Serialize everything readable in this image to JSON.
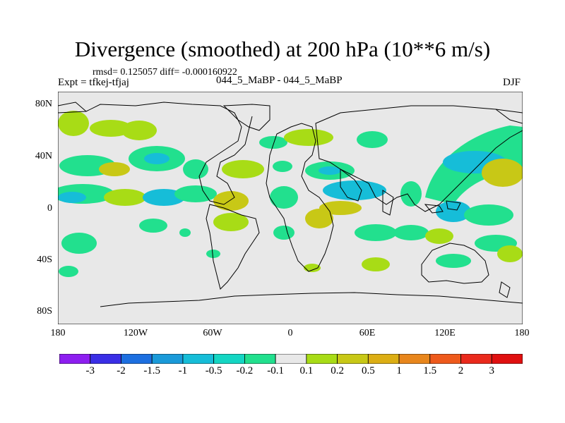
{
  "title": "Divergence (smoothed) at 200 hPa (10**6 m/s)",
  "stats": "rmsd= 0.125057 diff= -0.000160922",
  "expt": "Expt = tfkej-tfjaj",
  "center_label": "044_5_MaBP - 044_5_MaBP",
  "season": "DJF",
  "lat_labels": [
    "80N",
    "40N",
    "0",
    "40S",
    "80S"
  ],
  "lon_labels": [
    "180",
    "120W",
    "60W",
    "0",
    "60E",
    "120E",
    "180"
  ],
  "colorbar": {
    "labels": [
      "-3",
      "-2",
      "-1.5",
      "-1",
      "-0.5",
      "-0.2",
      "-0.1",
      "0.1",
      "0.2",
      "0.5",
      "1",
      "1.5",
      "2",
      "3"
    ],
    "colors": [
      "#8d1ef0",
      "#3a2ee6",
      "#1d6fe0",
      "#1a9ad9",
      "#16bdd8",
      "#14d6c3",
      "#22e08e",
      "#e8e8e8",
      "#a8dc16",
      "#c8c816",
      "#dcae14",
      "#e8861c",
      "#ee5a1c",
      "#ea2a1c",
      "#e01010"
    ]
  },
  "colors": {
    "background_field": "#e8e8e8",
    "coastline": "#000000"
  }
}
